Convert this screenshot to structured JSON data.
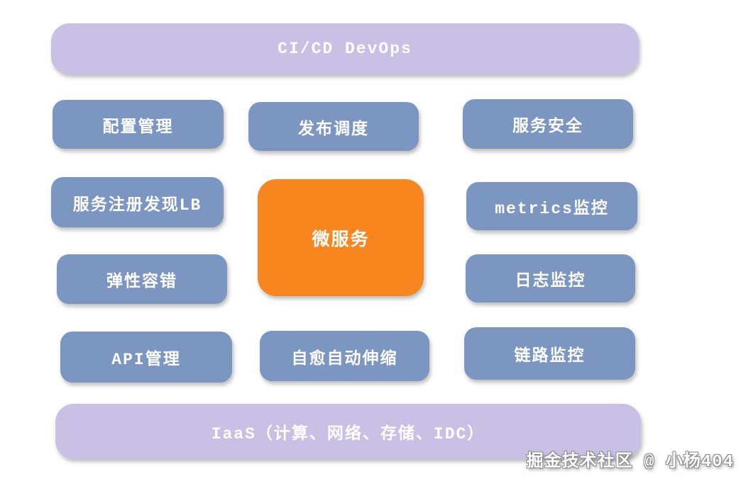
{
  "layers": {
    "top": "CI/CD DevOps",
    "bottom": "IaaS（计算、网络、存储、IDC）"
  },
  "nodes": {
    "config_management": "配置管理",
    "release_scheduling": "发布调度",
    "service_security": "服务安全",
    "service_registry_discovery_lb": "服务注册发现LB",
    "microservice": "微服务",
    "metrics_monitoring": "metrics监控",
    "elastic_fault_tolerance": "弹性容错",
    "log_monitoring": "日志监控",
    "api_management": "API管理",
    "self_healing_autoscaling": "自愈自动伸缩",
    "trace_monitoring": "链路监控"
  },
  "watermark": "掘金技术社区 @ 小杨404",
  "colors": {
    "layer_bar": "#c8c0e5",
    "capability_box": "#7b96c1",
    "center_box": "#f8861f",
    "label_text": "#ffffff",
    "background": "#ffffff"
  }
}
